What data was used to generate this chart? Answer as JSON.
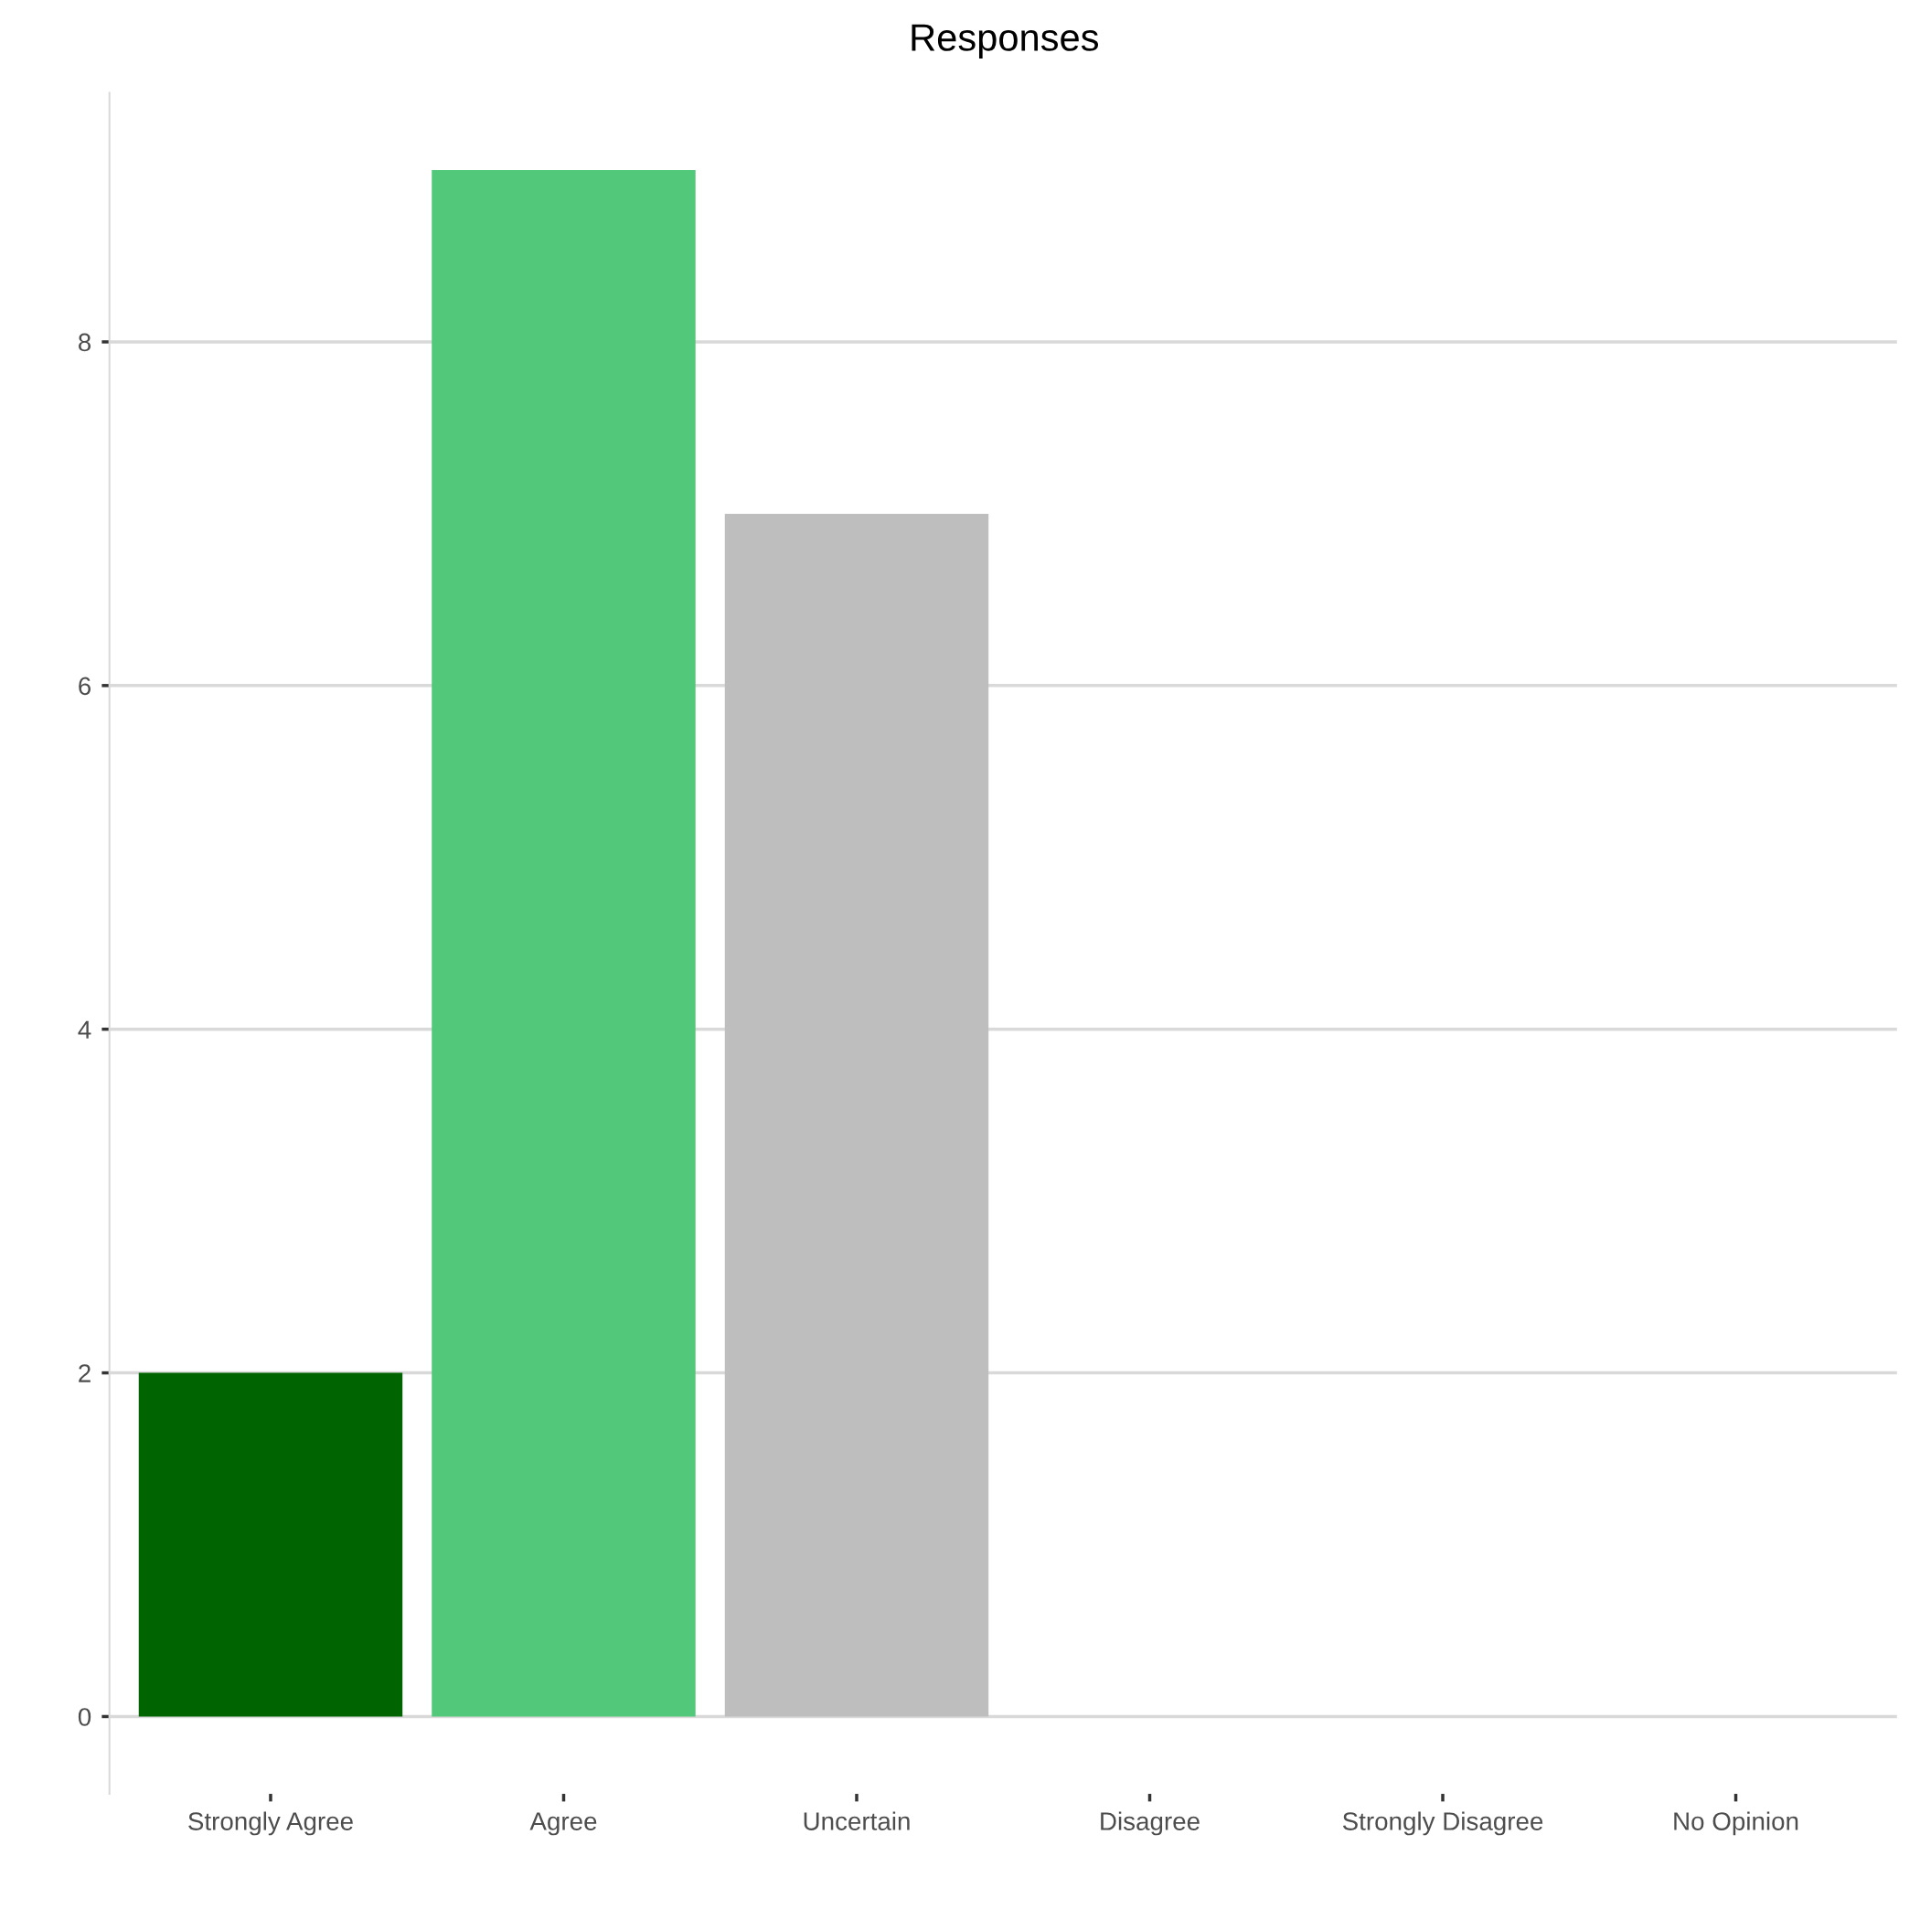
{
  "chart_data": {
    "type": "bar",
    "title": "Responses",
    "categories": [
      "Strongly Agree",
      "Agree",
      "Uncertain",
      "Disagree",
      "Strongly Disagree",
      "No Opinion"
    ],
    "values": [
      2,
      9,
      7,
      0,
      0,
      0
    ],
    "colors": [
      "#006400",
      "#52c87a",
      "#bebebe",
      null,
      null,
      null
    ],
    "ylim": [
      -0.45,
      9.45
    ],
    "yticks": [
      0,
      2,
      4,
      6,
      8
    ],
    "grid": "y",
    "legend": false
  }
}
